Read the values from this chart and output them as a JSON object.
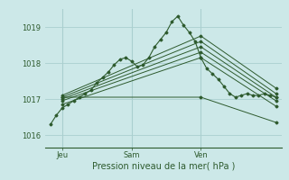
{
  "bg_color": "#cce8e8",
  "grid_color": "#aacfcf",
  "line_color": "#2d5a2d",
  "marker_color": "#2d5a2d",
  "title": "Pression niveau de la mer( hPa )",
  "ylabel_ticks": [
    1016,
    1017,
    1018,
    1019
  ],
  "xtick_labels": [
    "Jeu",
    "Sam",
    "Ven"
  ],
  "xtick_positions": [
    2,
    14,
    26
  ],
  "ylim": [
    1015.65,
    1019.5
  ],
  "xlim": [
    -1,
    40
  ],
  "vlines": [
    2,
    14,
    26
  ],
  "series": [
    [
      0,
      1016.3,
      1,
      1016.55,
      2,
      1016.75,
      3,
      1016.85,
      4,
      1016.95,
      5,
      1017.05,
      6,
      1017.15,
      7,
      1017.25,
      8,
      1017.45,
      9,
      1017.6,
      10,
      1017.75,
      11,
      1017.95,
      12,
      1018.1,
      13,
      1018.15,
      14,
      1018.05,
      15,
      1017.9,
      16,
      1017.95,
      17,
      1018.15,
      18,
      1018.45,
      19,
      1018.65,
      20,
      1018.85,
      21,
      1019.15,
      22,
      1019.3,
      23,
      1019.05,
      24,
      1018.85,
      25,
      1018.6,
      26,
      1018.15,
      27,
      1017.85,
      28,
      1017.7,
      29,
      1017.55,
      30,
      1017.35,
      31,
      1017.15,
      32,
      1017.05,
      33,
      1017.1,
      34,
      1017.15,
      35,
      1017.1,
      36,
      1017.1,
      37,
      1017.15,
      38,
      1017.1,
      39,
      1017.05
    ],
    [
      2,
      1016.85,
      26,
      1018.15,
      39,
      1016.8
    ],
    [
      2,
      1016.95,
      26,
      1018.3,
      39,
      1016.95
    ],
    [
      2,
      1017.0,
      26,
      1018.45,
      39,
      1017.05
    ],
    [
      2,
      1017.05,
      26,
      1018.6,
      39,
      1017.15
    ],
    [
      2,
      1017.1,
      26,
      1018.75,
      39,
      1017.3
    ],
    [
      2,
      1017.05,
      26,
      1017.05,
      39,
      1016.35
    ]
  ]
}
